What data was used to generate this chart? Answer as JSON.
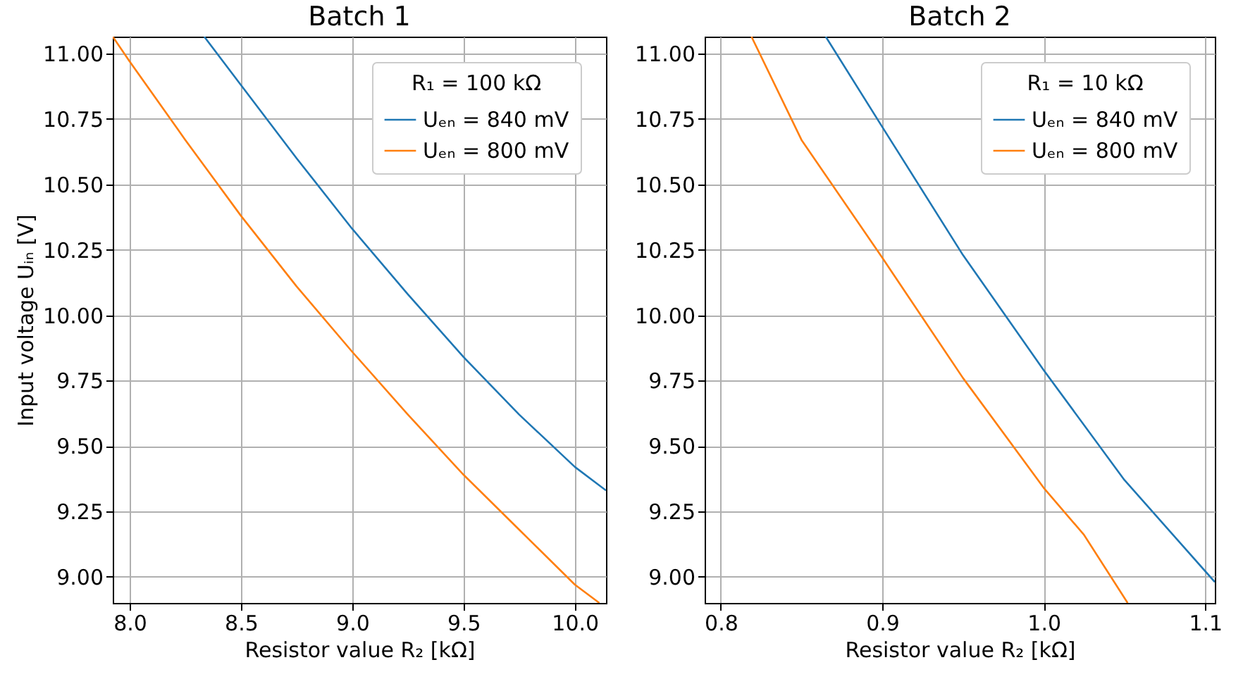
{
  "chart_data": [
    {
      "type": "line",
      "title": "Batch 1",
      "xlabel": "Resistor value R₂ [kΩ]",
      "ylabel": "Input voltage Uᵢₙ [V]",
      "legend_title": "R₁ = 100 kΩ",
      "legend": "top right",
      "grid": true,
      "line_style": "solid",
      "xlim": [
        7.924,
        10.14
      ],
      "ylim": [
        8.9,
        11.065
      ],
      "xticks": [
        {
          "value": 8,
          "label": "8.0"
        },
        8.5,
        {
          "value": 9,
          "label": "9.0"
        },
        9.5,
        {
          "value": 10,
          "label": "10.0"
        }
      ],
      "yticks": [
        {
          "value": 9,
          "label": "9.00"
        },
        9.25,
        {
          "value": 9.5,
          "label": "9.50"
        },
        9.75,
        {
          "value": 10,
          "label": "10.00"
        },
        10.25,
        {
          "value": 10.5,
          "label": "10.50"
        },
        10.75,
        {
          "value": 11,
          "label": "11.00"
        }
      ],
      "series": [
        {
          "name": "Uₑₙ = 840 mV",
          "color": "#1f77b4",
          "x": [
            8.335,
            8.5,
            8.75,
            9.0,
            9.25,
            9.5,
            9.75,
            10.0,
            10.14
          ],
          "values": [
            11.065,
            10.88,
            10.6,
            10.33,
            10.08,
            9.84,
            9.62,
            9.42,
            9.33
          ]
        },
        {
          "name": "Uₑₙ = 800 mV",
          "color": "#ff7f0e",
          "x": [
            7.924,
            8.0,
            8.25,
            8.5,
            8.75,
            9.0,
            9.25,
            9.5,
            9.75,
            10.0,
            10.11
          ],
          "values": [
            11.065,
            10.97,
            10.67,
            10.38,
            10.11,
            9.86,
            9.62,
            9.39,
            9.18,
            8.97,
            8.9
          ]
        }
      ]
    },
    {
      "type": "line",
      "title": "Batch 2",
      "xlabel": "Resistor value R₂ [kΩ]",
      "legend_title": "R₁ = 10 kΩ",
      "legend": "top right",
      "grid": true,
      "line_style": "solid",
      "xlim": [
        0.79,
        1.106
      ],
      "ylim": [
        8.9,
        11.065
      ],
      "xticks": [
        0.8,
        0.9,
        {
          "value": 1,
          "label": "1.0"
        },
        1.1
      ],
      "yticks": [
        {
          "value": 9,
          "label": "9.00"
        },
        9.25,
        {
          "value": 9.5,
          "label": "9.50"
        },
        9.75,
        {
          "value": 10,
          "label": "10.00"
        },
        10.25,
        {
          "value": 10.5,
          "label": "10.50"
        },
        10.75,
        {
          "value": 11,
          "label": "11.00"
        }
      ],
      "series": [
        {
          "name": "Uₑₙ = 840 mV",
          "color": "#1f77b4",
          "x": [
            0.865,
            0.9,
            0.95,
            1.0,
            1.05,
            1.106
          ],
          "values": [
            11.065,
            10.72,
            10.23,
            9.79,
            9.37,
            8.98
          ]
        },
        {
          "name": "Uₑₙ = 800 mV",
          "color": "#ff7f0e",
          "x": [
            0.819,
            0.85,
            0.9,
            0.95,
            1.0,
            1.025,
            1.052
          ],
          "values": [
            11.065,
            10.67,
            10.22,
            9.76,
            9.34,
            9.16,
            8.9
          ]
        }
      ]
    }
  ]
}
